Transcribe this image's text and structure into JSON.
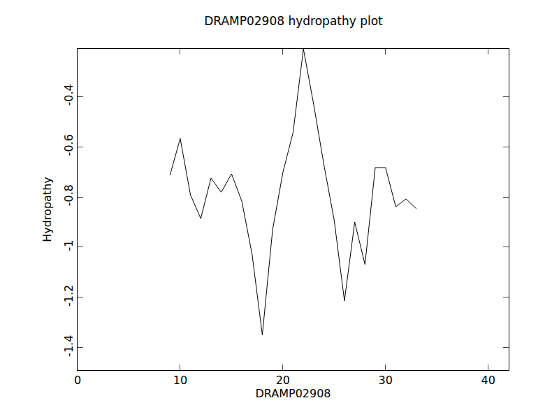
{
  "chart_data": {
    "type": "line",
    "title": "DRAMP02908 hydropathy plot",
    "x_label": "DRAMP02908",
    "y_label": "Hydropathy",
    "x": [
      9,
      10,
      11,
      12,
      13,
      14,
      15,
      16,
      17,
      18,
      19,
      20,
      21,
      22,
      23,
      24,
      25,
      26,
      27,
      28,
      29,
      30,
      31,
      32,
      33
    ],
    "values": [
      -0.714,
      -0.567,
      -0.792,
      -0.886,
      -0.725,
      -0.781,
      -0.708,
      -0.817,
      -1.028,
      -1.35,
      -0.931,
      -0.703,
      -0.542,
      -0.21,
      -0.431,
      -0.672,
      -0.892,
      -1.214,
      -0.9,
      -1.069,
      -0.683,
      -0.683,
      -0.839,
      -0.808,
      -0.847
    ],
    "color": "#000000",
    "xlim": [
      0,
      42
    ],
    "xticks": [
      0,
      10,
      20,
      30,
      40
    ],
    "ylim": [
      -1.49,
      -0.21
    ],
    "yticks": [
      -1.4,
      -1.2,
      -1.0,
      -0.8,
      -0.6,
      -0.4
    ],
    "grid": false
  }
}
